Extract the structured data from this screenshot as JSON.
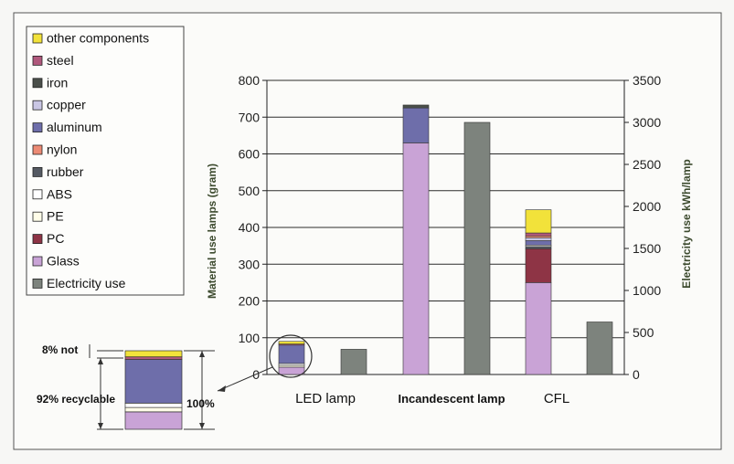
{
  "chart_data": {
    "type": "bar",
    "stacked": true,
    "categories": [
      "LED lamp",
      "Incandescent lamp",
      "CFL"
    ],
    "ylabel_left": "Material use lamps (gram)",
    "ylabel_right": "Electricity use kWh/lamp",
    "ylim_left": [
      0,
      800
    ],
    "ylim_right": [
      0,
      3500
    ],
    "yticks_left": [
      0,
      100,
      200,
      300,
      400,
      500,
      600,
      700,
      800
    ],
    "yticks_right": [
      0,
      500,
      1000,
      1500,
      2000,
      2500,
      3000,
      3500
    ],
    "grid": true,
    "legend_position": "left",
    "legend": [
      {
        "name": "other components",
        "color": "#f2e23a"
      },
      {
        "name": "steel",
        "color": "#b0587c"
      },
      {
        "name": "iron",
        "color": "#4a4f4a"
      },
      {
        "name": "copper",
        "color": "#c9c6e4"
      },
      {
        "name": "aluminum",
        "color": "#6e6eaa"
      },
      {
        "name": "nylon",
        "color": "#ec8a74"
      },
      {
        "name": "rubber",
        "color": "#555a63"
      },
      {
        "name": "ABS",
        "color": "#ffffff"
      },
      {
        "name": "PE",
        "color": "#fffde8"
      },
      {
        "name": "PC",
        "color": "#8e3445"
      },
      {
        "name": "Glass",
        "color": "#c9a3d6"
      },
      {
        "name": "Electricity use",
        "color": "#7d837d"
      }
    ],
    "material_stacks": [
      {
        "category": "LED lamp",
        "components": [
          {
            "name": "Glass",
            "value": 20
          },
          {
            "name": "PE",
            "value": 5
          },
          {
            "name": "ABS",
            "value": 5
          },
          {
            "name": "aluminum",
            "value": 50
          },
          {
            "name": "steel",
            "value": 3
          },
          {
            "name": "other components",
            "value": 7
          }
        ]
      },
      {
        "category": "Incandescent lamp",
        "components": [
          {
            "name": "Glass",
            "value": 630
          },
          {
            "name": "aluminum",
            "value": 95
          },
          {
            "name": "iron",
            "value": 8
          }
        ]
      },
      {
        "category": "CFL",
        "components": [
          {
            "name": "Glass",
            "value": 250
          },
          {
            "name": "PC",
            "value": 92
          },
          {
            "name": "rubber",
            "value": 6
          },
          {
            "name": "ABS",
            "value": 4
          },
          {
            "name": "aluminum",
            "value": 12
          },
          {
            "name": "copper",
            "value": 8
          },
          {
            "name": "nylon",
            "value": 5
          },
          {
            "name": "steel",
            "value": 8
          },
          {
            "name": "other components",
            "value": 63
          }
        ]
      }
    ],
    "electricity_use": [
      {
        "category": "LED lamp",
        "value": 300
      },
      {
        "category": "Incandescent lamp",
        "value": 3000
      },
      {
        "category": "CFL",
        "value": 625
      }
    ],
    "inset": {
      "segments": [
        "Glass",
        "PE",
        "aluminum",
        "steel",
        "other components"
      ],
      "labels": {
        "not": "8% not",
        "recyclable": "92% recyclable",
        "total": "100%"
      }
    }
  }
}
